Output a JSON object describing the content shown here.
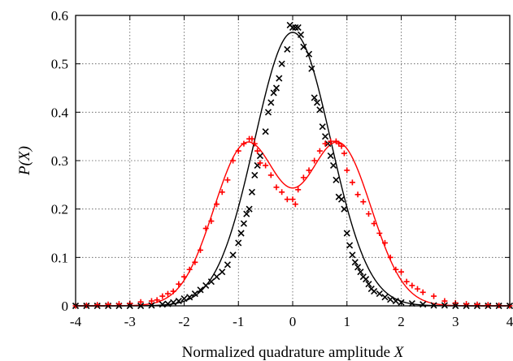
{
  "chart_data": {
    "type": "scatter",
    "title": "",
    "xlabel": "Normalized quadrature amplitude",
    "xlabel_var": "X",
    "ylabel": "P(X)",
    "xlim": [
      -4,
      4
    ],
    "ylim": [
      0,
      0.6
    ],
    "x_ticks": [
      "-4",
      "-3",
      "-2",
      "-1",
      "0",
      "1",
      "2",
      "3",
      "4"
    ],
    "y_ticks": [
      "0",
      "0.1",
      "0.2",
      "0.3",
      "0.4",
      "0.5",
      "0.6"
    ],
    "grid": true,
    "legend": "none",
    "series": [
      {
        "kind": "fit-line",
        "color": "#000000",
        "gaussian": {
          "amplitude": 0.565,
          "center": 0.0,
          "sigma": 0.7
        }
      },
      {
        "kind": "fit-line",
        "color": "#ff0000",
        "two_gaussian": {
          "amplitude": 0.338,
          "separation": 0.85,
          "sigma": 0.6
        }
      },
      {
        "kind": "markers",
        "marker": "x",
        "color": "#000000",
        "x": [
          -4.0,
          -3.8,
          -3.6,
          -3.4,
          -3.2,
          -3.0,
          -2.8,
          -2.6,
          -2.4,
          -2.3,
          -2.2,
          -2.1,
          -2.0,
          -1.9,
          -1.8,
          -1.7,
          -1.6,
          -1.5,
          -1.4,
          -1.3,
          -1.2,
          -1.1,
          -1.0,
          -0.95,
          -0.9,
          -0.85,
          -0.8,
          -0.75,
          -0.7,
          -0.65,
          -0.6,
          -0.5,
          -0.45,
          -0.4,
          -0.35,
          -0.3,
          -0.25,
          -0.2,
          -0.1,
          -0.05,
          0.0,
          0.05,
          0.1,
          0.15,
          0.2,
          0.3,
          0.35,
          0.4,
          0.45,
          0.5,
          0.55,
          0.6,
          0.65,
          0.7,
          0.75,
          0.8,
          0.85,
          0.9,
          0.95,
          1.0,
          1.05,
          1.1,
          1.15,
          1.2,
          1.25,
          1.3,
          1.35,
          1.4,
          1.45,
          1.5,
          1.6,
          1.7,
          1.8,
          1.9,
          2.0,
          2.2,
          2.4,
          2.6,
          2.8,
          3.0,
          3.2,
          3.4,
          3.6,
          3.8,
          4.0
        ],
        "y": [
          0.0,
          0.0,
          0.0,
          0.0,
          0.0,
          0.0,
          0.0,
          0.001,
          0.003,
          0.004,
          0.007,
          0.01,
          0.015,
          0.018,
          0.025,
          0.033,
          0.042,
          0.05,
          0.06,
          0.07,
          0.085,
          0.105,
          0.13,
          0.15,
          0.17,
          0.19,
          0.2,
          0.235,
          0.27,
          0.29,
          0.31,
          0.36,
          0.4,
          0.42,
          0.44,
          0.45,
          0.47,
          0.5,
          0.53,
          0.58,
          0.575,
          0.575,
          0.575,
          0.56,
          0.535,
          0.52,
          0.49,
          0.43,
          0.42,
          0.405,
          0.37,
          0.35,
          0.335,
          0.31,
          0.29,
          0.26,
          0.225,
          0.22,
          0.2,
          0.15,
          0.125,
          0.105,
          0.09,
          0.08,
          0.07,
          0.06,
          0.055,
          0.045,
          0.035,
          0.03,
          0.025,
          0.018,
          0.013,
          0.01,
          0.007,
          0.005,
          0.003,
          0.001,
          0.001,
          0.0,
          0.0,
          0.0,
          0.0,
          0.0,
          0.0
        ]
      },
      {
        "kind": "markers",
        "marker": "+",
        "color": "#ff0000",
        "x": [
          -4.0,
          -3.8,
          -3.6,
          -3.4,
          -3.2,
          -3.0,
          -2.8,
          -2.6,
          -2.5,
          -2.4,
          -2.3,
          -2.2,
          -2.1,
          -2.0,
          -1.9,
          -1.8,
          -1.7,
          -1.6,
          -1.5,
          -1.4,
          -1.3,
          -1.2,
          -1.1,
          -1.0,
          -0.9,
          -0.8,
          -0.75,
          -0.7,
          -0.65,
          -0.6,
          -0.5,
          -0.4,
          -0.3,
          -0.2,
          -0.1,
          0.0,
          0.05,
          0.1,
          0.2,
          0.3,
          0.4,
          0.5,
          0.6,
          0.7,
          0.8,
          0.85,
          0.9,
          0.95,
          1.0,
          1.1,
          1.2,
          1.3,
          1.4,
          1.5,
          1.6,
          1.7,
          1.8,
          1.9,
          2.0,
          2.1,
          2.2,
          2.3,
          2.4,
          2.6,
          2.8,
          3.0,
          3.2,
          3.4,
          3.6,
          3.8,
          4.0
        ],
        "y": [
          0.0,
          0.001,
          0.002,
          0.003,
          0.004,
          0.005,
          0.008,
          0.01,
          0.012,
          0.02,
          0.025,
          0.03,
          0.045,
          0.06,
          0.075,
          0.09,
          0.115,
          0.16,
          0.175,
          0.21,
          0.235,
          0.26,
          0.3,
          0.32,
          0.335,
          0.345,
          0.345,
          0.335,
          0.32,
          0.295,
          0.29,
          0.27,
          0.245,
          0.235,
          0.22,
          0.22,
          0.21,
          0.24,
          0.265,
          0.28,
          0.3,
          0.32,
          0.335,
          0.34,
          0.34,
          0.335,
          0.33,
          0.315,
          0.28,
          0.255,
          0.23,
          0.215,
          0.19,
          0.17,
          0.15,
          0.13,
          0.1,
          0.075,
          0.07,
          0.05,
          0.042,
          0.035,
          0.028,
          0.02,
          0.01,
          0.006,
          0.004,
          0.003,
          0.002,
          0.001,
          0.0
        ]
      }
    ]
  }
}
